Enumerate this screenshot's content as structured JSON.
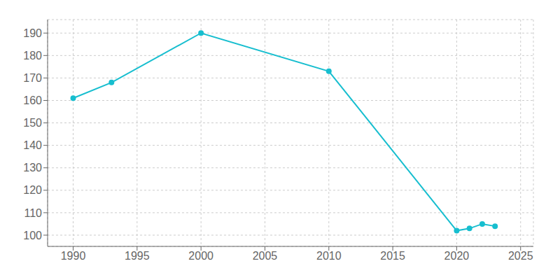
{
  "chart_data": {
    "type": "line",
    "x": [
      1990,
      1993,
      2000,
      2010,
      2020,
      2021,
      2022,
      2023
    ],
    "values": [
      161,
      168,
      190,
      173,
      102,
      103,
      105,
      104
    ],
    "color": "#17becf",
    "marker": "circle",
    "xlim": [
      1988,
      2026
    ],
    "ylim": [
      95,
      196
    ],
    "xticks": [
      1990,
      1995,
      2000,
      2005,
      2010,
      2015,
      2020,
      2025
    ],
    "yticks": [
      100,
      110,
      120,
      130,
      140,
      150,
      160,
      170,
      180,
      190
    ],
    "grid": true
  }
}
